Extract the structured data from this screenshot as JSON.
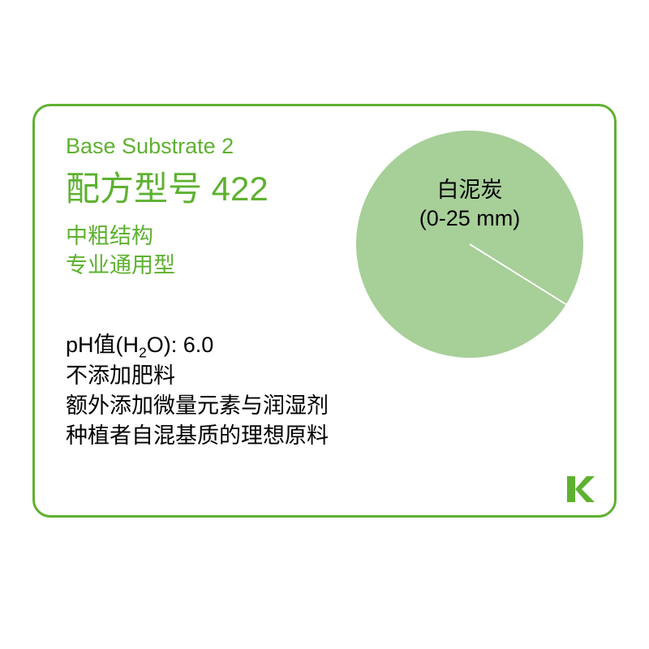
{
  "card": {
    "border_color": "#5eb130",
    "background": "#ffffff",
    "title_en": "Base Substrate 2",
    "title_cn": "配方型号 422",
    "title_color": "#5eb130",
    "subtitle1": "中粗结构",
    "subtitle2": "专业通用型",
    "subtitle_color": "#5eb130",
    "ph_label": "pH值(H",
    "ph_sub": "2",
    "ph_tail": "O): ",
    "ph_value": "6.0",
    "desc1": "不添加肥料",
    "desc2": "额外添加微量元素与润湿剂",
    "desc3": "种植者自混基质的理想原料"
  },
  "pie": {
    "type": "pie",
    "radius": 140,
    "background_color": "#ffffff",
    "slices": [
      {
        "label_line1": "白泥炭",
        "label_line2": "(0-25 mm)",
        "value": 100,
        "color": "#a7cf98"
      }
    ],
    "radius_line": {
      "angle_deg": 32,
      "color": "#ffffff",
      "width": 2
    }
  },
  "logo": {
    "letter": "K",
    "color": "#5eb130"
  }
}
